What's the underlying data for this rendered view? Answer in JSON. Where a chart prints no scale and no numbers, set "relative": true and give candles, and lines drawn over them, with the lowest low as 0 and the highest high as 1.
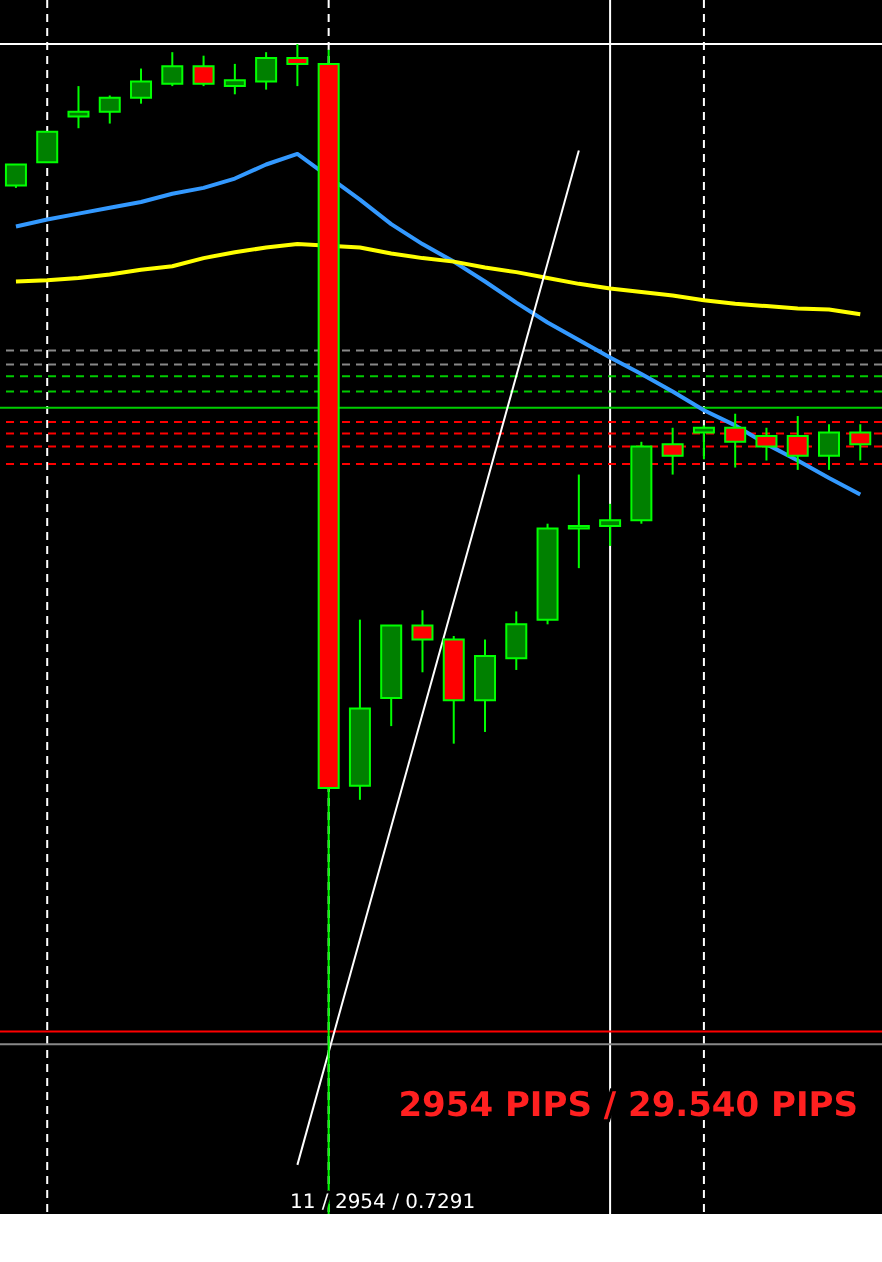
{
  "chart_data": {
    "type": "candlestick",
    "relative": true,
    "grid": "x",
    "categories": [
      null,
      null,
      null,
      null,
      null,
      null,
      null,
      null,
      null,
      null,
      null,
      null,
      null,
      null,
      null,
      null,
      null,
      null,
      null,
      null,
      null,
      null,
      null,
      null,
      null,
      null,
      null,
      null
    ],
    "ohlc": [
      [
        0.879,
        0.897,
        0.877,
        0.897
      ],
      [
        0.899,
        0.925,
        0.899,
        0.925
      ],
      [
        0.938,
        0.964,
        0.928,
        0.942
      ],
      [
        0.942,
        0.956,
        0.932,
        0.954
      ],
      [
        0.954,
        0.979,
        0.949,
        0.968
      ],
      [
        0.966,
        0.993,
        0.964,
        0.981
      ],
      [
        0.981,
        0.99,
        0.964,
        0.966
      ],
      [
        0.964,
        0.983,
        0.957,
        0.969
      ],
      [
        0.968,
        0.993,
        0.961,
        0.988
      ],
      [
        0.988,
        1.0,
        0.964,
        0.983
      ],
      [
        0.983,
        0.995,
        0.0,
        0.364
      ],
      [
        0.366,
        0.508,
        0.354,
        0.432
      ],
      [
        0.441,
        0.503,
        0.417,
        0.503
      ],
      [
        0.503,
        0.516,
        0.463,
        0.491
      ],
      [
        0.491,
        0.494,
        0.402,
        0.439
      ],
      [
        0.439,
        0.491,
        0.412,
        0.477
      ],
      [
        0.475,
        0.515,
        0.465,
        0.504
      ],
      [
        0.508,
        0.59,
        0.504,
        0.586
      ],
      [
        0.586,
        0.632,
        0.552,
        0.588
      ],
      [
        0.588,
        0.607,
        0.571,
        0.593
      ],
      [
        0.593,
        0.66,
        0.59,
        0.656
      ],
      [
        0.658,
        0.672,
        0.632,
        0.648
      ],
      [
        0.668,
        0.674,
        0.645,
        0.672
      ],
      [
        0.672,
        0.684,
        0.638,
        0.66
      ],
      [
        0.665,
        0.672,
        0.644,
        0.656
      ],
      [
        0.665,
        0.682,
        0.636,
        0.648
      ],
      [
        0.648,
        0.675,
        0.636,
        0.668
      ],
      [
        0.668,
        0.675,
        0.644,
        0.658
      ]
    ],
    "colors": [
      "#008000",
      "#008000",
      "#008000",
      "#008000",
      "#008000",
      "#008000",
      "#ff0000",
      "#008000",
      "#008000",
      "#ff0000",
      "#ff0000",
      "#008000",
      "#008000",
      "#ff0000",
      "#ff0000",
      "#008000",
      "#008000",
      "#008000",
      "#008000",
      "#008000",
      "#008000",
      "#ff0000",
      "#008000",
      "#ff0000",
      "#ff0000",
      "#ff0000",
      "#008000",
      "#ff0000"
    ],
    "series": [
      {
        "type": "line",
        "color": "#3399ff",
        "values": [
          0.844,
          0.85,
          0.855,
          0.86,
          0.865,
          0.872,
          0.877,
          0.885,
          0.897,
          0.906,
          null,
          0.867,
          0.846,
          0.829,
          0.814,
          0.797,
          0.779,
          0.762,
          0.747,
          0.732,
          0.718,
          0.703,
          0.687,
          0.674,
          0.658,
          0.644,
          0.629,
          0.615
        ]
      },
      {
        "type": "line",
        "color": "#ffff00",
        "values": [
          0.797,
          0.798,
          0.8,
          0.803,
          0.807,
          0.81,
          0.817,
          0.822,
          0.826,
          0.829,
          null,
          0.826,
          0.821,
          0.817,
          0.814,
          0.809,
          0.805,
          0.8,
          0.795,
          0.791,
          0.788,
          0.785,
          0.781,
          0.778,
          0.776,
          0.774,
          0.773,
          0.769
        ]
      },
      {
        "type": "line",
        "color": "#ffffff",
        "values": [
          null,
          null,
          null,
          null,
          null,
          null,
          null,
          null,
          null,
          0.042,
          null,
          null,
          null,
          null,
          null,
          null,
          null,
          null,
          0.909,
          null,
          null,
          null,
          null,
          null,
          null,
          null,
          null,
          null
        ]
      }
    ],
    "ref_lines": [
      {
        "axis": "y",
        "value": 1.0,
        "color": "#ffffff",
        "line_style": "solid"
      },
      {
        "axis": "y",
        "value": 0.738,
        "color": "#888888",
        "line_style": "dashed"
      },
      {
        "axis": "y",
        "value": 0.726,
        "color": "#888888",
        "line_style": "dashed"
      },
      {
        "axis": "y",
        "value": 0.716,
        "color": "#00cc00",
        "line_style": "dashed"
      },
      {
        "axis": "y",
        "value": 0.703,
        "color": "#00cc00",
        "line_style": "dashed"
      },
      {
        "axis": "y",
        "value": 0.689,
        "color": "#00cc00",
        "line_style": "solid"
      },
      {
        "axis": "y",
        "value": 0.677,
        "color": "#ff0000",
        "line_style": "dashed"
      },
      {
        "axis": "y",
        "value": 0.667,
        "color": "#ff0000",
        "line_style": "dashed"
      },
      {
        "axis": "y",
        "value": 0.656,
        "color": "#ff0000",
        "line_style": "dashed"
      },
      {
        "axis": "y",
        "value": 0.641,
        "color": "#ff0000",
        "line_style": "dashed"
      },
      {
        "axis": "y",
        "value": 0.156,
        "color": "#ff0000",
        "line_style": "solid"
      },
      {
        "axis": "y",
        "value": 0.145,
        "color": "#888888",
        "line_style": "solid"
      }
    ],
    "annotations": [
      "2954 PIPS / 29.540 PIPS",
      "11 / 2954 / 0.7291"
    ]
  }
}
